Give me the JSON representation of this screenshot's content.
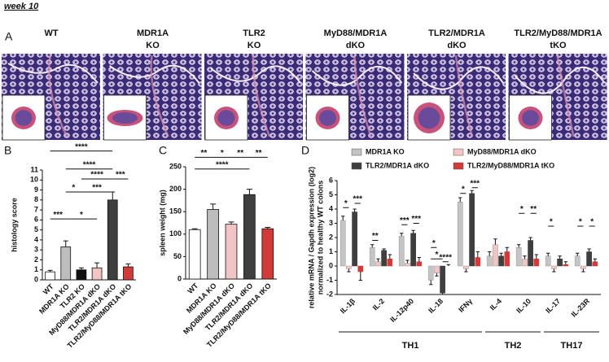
{
  "header": {
    "title": "week 10"
  },
  "panel_a": {
    "label": "A",
    "columns": [
      [
        "WT"
      ],
      [
        "MDR1A",
        "KO"
      ],
      [
        "TLR2",
        "KO"
      ],
      [
        "MyD88/MDR1A",
        "dKO"
      ],
      [
        "TLR2/MDR1A",
        "dKO"
      ],
      [
        "TLR2/MyD88/MDR1A",
        "tKO"
      ]
    ]
  },
  "chart_data": [
    {
      "type": "bar",
      "panel": "B",
      "ylabel": "histology score",
      "categories": [
        "WT",
        "MDR1A KO",
        "TLR2 KO",
        "MyD88/MDR1A dKO",
        "TLR2/MDR1A dKO",
        "TLR2/MyD88/MDR1A tKO"
      ],
      "values": [
        0.8,
        3.3,
        1.0,
        1.2,
        8.0,
        1.3
      ],
      "errors": [
        0.15,
        0.6,
        0.2,
        0.5,
        0.8,
        0.3
      ],
      "colors": [
        "#ffffff",
        "#bdbdbd",
        "#111111",
        "#f2c4c4",
        "#3f3f3f",
        "#d23a3a"
      ],
      "ylim": [
        0,
        11
      ],
      "yticks": [
        0,
        1,
        2,
        3,
        4,
        5,
        6,
        7,
        8,
        9,
        10,
        11
      ],
      "annotations": [
        {
          "text": "****",
          "from": 0,
          "to": 4,
          "y": 12.9
        },
        {
          "text": "****",
          "from": 1,
          "to": 4,
          "y": 11.1
        },
        {
          "text": "****",
          "from": 2,
          "to": 4,
          "y": 10.1
        },
        {
          "text": "***",
          "from": 4,
          "to": 5,
          "y": 10.1
        },
        {
          "text": "*",
          "from": 1,
          "to": 2,
          "y": 8.8
        },
        {
          "text": "***",
          "from": 2,
          "to": 4,
          "y": 8.8
        },
        {
          "text": "***",
          "from": 0,
          "to": 1,
          "y": 6.1
        },
        {
          "text": "*",
          "from": 1,
          "to": 3,
          "y": 6.1
        }
      ]
    },
    {
      "type": "bar",
      "panel": "C",
      "ylabel": "spleen weight (mg)",
      "categories": [
        "WT",
        "MDR1A KO",
        "MyD88/MDR1A dKO",
        "TLR2/MDR1A dKO",
        "TLR2/MyD88/MDR1A tKO"
      ],
      "values": [
        110,
        155,
        122,
        188,
        112
      ],
      "errors": [
        2,
        12,
        5,
        12,
        3
      ],
      "colors": [
        "#ffffff",
        "#bdbdbd",
        "#f2c4c4",
        "#3f3f3f",
        "#d23a3a"
      ],
      "ylim": [
        0,
        250
      ],
      "yticks": [
        0,
        50,
        100,
        150,
        200,
        250
      ],
      "annotations": [
        {
          "text": "****",
          "from": 0,
          "to": 3,
          "y": 245
        },
        {
          "text": "**",
          "from": 0,
          "to": 1,
          "y": 271
        },
        {
          "text": "*",
          "from": 1,
          "to": 2,
          "y": 271
        },
        {
          "text": "**",
          "from": 2,
          "to": 3,
          "y": 271
        },
        {
          "text": "**",
          "from": 3,
          "to": 4,
          "y": 271
        }
      ]
    },
    {
      "type": "grouped-bar",
      "panel": "D",
      "ylabel": [
        "relative mRNA / Gapdh expression (log2)",
        "normalized to healthy WT colons"
      ],
      "categories": [
        "IL-1β",
        "IL-2",
        "IL-12p40",
        "IL-18",
        "IFNγ",
        "IL-4",
        "IL-10",
        "IL-17",
        "IL-23R"
      ],
      "series": [
        {
          "name": "MDR1A KO",
          "color": "#c4c4c4",
          "values": [
            3.2,
            1.3,
            2.1,
            -1.0,
            4.5,
            0.7,
            1.3,
            0.7,
            0.7
          ],
          "errors": [
            0.3,
            0.2,
            0.2,
            0.3,
            0.3,
            0.3,
            0.2,
            0.2,
            0.2
          ]
        },
        {
          "name": "MyD88/MDR1A dKO",
          "color": "#f2c4c4",
          "values": [
            -0.2,
            0.3,
            0.2,
            -0.5,
            -0.2,
            1.5,
            0.5,
            -0.2,
            -0.2
          ],
          "errors": [
            0.2,
            0.2,
            0.2,
            0.2,
            0.2,
            0.4,
            0.2,
            0.2,
            0.2
          ]
        },
        {
          "name": "TLR2/MDR1A dKO",
          "color": "#3f3f3f",
          "values": [
            3.8,
            1.1,
            2.3,
            -1.9,
            5.1,
            0.7,
            1.8,
            0.5,
            1.0
          ],
          "errors": [
            0.2,
            0.1,
            0.2,
            0.1,
            0.2,
            0.2,
            0.2,
            0.2,
            0.2
          ]
        },
        {
          "name": "TLR2/MyD88/MDR1A tKO",
          "color": "#d23a3a",
          "values": [
            -0.4,
            0.5,
            0.3,
            0.0,
            0.6,
            1.0,
            0.5,
            0.1,
            0.3
          ],
          "errors": [
            0.6,
            0.3,
            0.3,
            0.1,
            0.4,
            0.3,
            0.3,
            0.2,
            0.2
          ]
        }
      ],
      "ylim": [
        -2,
        6
      ],
      "yticks": [
        -2,
        -1,
        0,
        1,
        2,
        3,
        4,
        5,
        6
      ],
      "annotations": [
        {
          "text": "*",
          "category": 0,
          "from": 0,
          "to": 1,
          "y": 4.1
        },
        {
          "text": "***",
          "category": 0,
          "from": 2,
          "to": 3,
          "y": 4.4
        },
        {
          "text": "**",
          "category": 1,
          "from": 0,
          "to": 1,
          "y": 1.8
        },
        {
          "text": "***",
          "category": 2,
          "from": 0,
          "to": 1,
          "y": 2.9
        },
        {
          "text": "***",
          "category": 2,
          "from": 2,
          "to": 3,
          "y": 3.0
        },
        {
          "text": "*",
          "category": 3,
          "from": 0,
          "to": 1,
          "y": 1.3
        },
        {
          "text": "*",
          "category": 3,
          "from": 0,
          "to": 2,
          "y": 0.5
        },
        {
          "text": "****",
          "category": 3,
          "from": 2,
          "to": 3,
          "y": 0.3
        },
        {
          "text": "*",
          "category": 4,
          "from": 0,
          "to": 1,
          "y": 5.1
        },
        {
          "text": "***",
          "category": 4,
          "from": 2,
          "to": 3,
          "y": 5.5
        },
        {
          "text": "*",
          "category": 6,
          "from": 0,
          "to": 1,
          "y": 3.7
        },
        {
          "text": "**",
          "category": 6,
          "from": 2,
          "to": 3,
          "y": 3.7
        },
        {
          "text": "*",
          "category": 7,
          "from": 0,
          "to": 1,
          "y": 2.8
        },
        {
          "text": "*",
          "category": 8,
          "from": 0,
          "to": 1,
          "y": 2.8
        },
        {
          "text": "*",
          "category": 8,
          "from": 2,
          "to": 3,
          "y": 2.8
        }
      ],
      "groups": [
        {
          "label": "TH1",
          "from": 0,
          "to": 4
        },
        {
          "label": "TH2",
          "from": 5,
          "to": 6
        },
        {
          "label": "TH17",
          "from": 7,
          "to": 8
        }
      ]
    }
  ]
}
